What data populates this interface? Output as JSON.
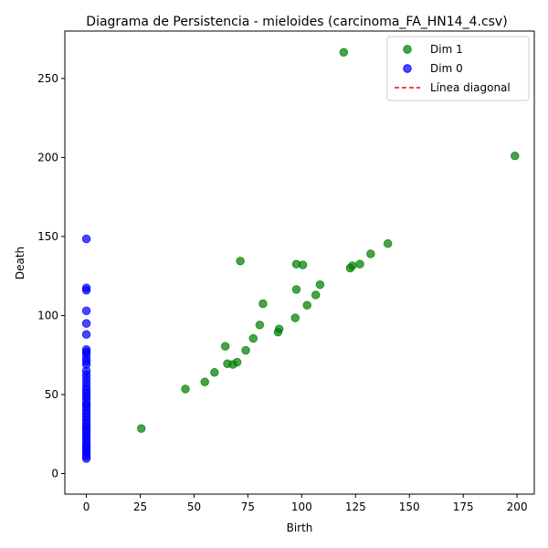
{
  "chart_data": {
    "type": "scatter",
    "title": "Diagrama de Persistencia - mieloides (carcinoma_FA_HN14_4.csv)",
    "xlabel": "Birth",
    "ylabel": "Death",
    "xlim": [
      -10,
      208
    ],
    "ylim": [
      -13,
      280
    ],
    "xticks": [
      0,
      25,
      50,
      75,
      100,
      125,
      150,
      175,
      200
    ],
    "yticks": [
      0,
      50,
      100,
      150,
      200,
      250
    ],
    "grid": false,
    "legend_position": "top-right",
    "series": [
      {
        "name": "Dim 1",
        "color": "#008000",
        "points": [
          [
            25.5,
            28.5
          ],
          [
            46,
            53.5
          ],
          [
            55,
            58
          ],
          [
            59.5,
            64
          ],
          [
            64.5,
            80.5
          ],
          [
            65.5,
            69.5
          ],
          [
            68,
            69
          ],
          [
            70,
            70.5
          ],
          [
            74,
            78
          ],
          [
            77.5,
            85.5
          ],
          [
            80.5,
            94
          ],
          [
            82,
            107.5
          ],
          [
            71.5,
            134.5
          ],
          [
            89,
            89.5
          ],
          [
            89.5,
            91.5
          ],
          [
            97,
            98.5
          ],
          [
            97.5,
            116.5
          ],
          [
            97.5,
            132.5
          ],
          [
            100.5,
            132
          ],
          [
            102.5,
            106.5
          ],
          [
            106.5,
            113
          ],
          [
            108.5,
            119.5
          ],
          [
            122.5,
            130
          ],
          [
            123.5,
            131.5
          ],
          [
            127,
            132.5
          ],
          [
            132,
            139
          ],
          [
            140,
            145.5
          ],
          [
            119.5,
            266.5
          ],
          [
            199,
            201
          ]
        ]
      },
      {
        "name": "Dim 0",
        "color": "#0000ff",
        "points": [
          [
            0,
            148.5
          ],
          [
            0,
            117.5
          ],
          [
            0,
            116
          ],
          [
            0,
            103
          ],
          [
            0,
            95
          ],
          [
            0,
            88
          ],
          [
            0,
            78.5
          ],
          [
            0,
            77
          ],
          [
            0,
            75.5
          ],
          [
            0,
            73
          ],
          [
            0,
            71
          ],
          [
            0,
            69
          ],
          [
            0,
            65
          ],
          [
            0,
            62.5
          ],
          [
            0,
            60
          ],
          [
            0,
            57.5
          ],
          [
            0,
            55
          ],
          [
            0,
            53
          ],
          [
            0,
            51
          ],
          [
            0,
            49
          ],
          [
            0,
            47.5
          ],
          [
            0,
            45
          ],
          [
            0,
            43.5
          ],
          [
            0,
            42
          ],
          [
            0,
            40
          ],
          [
            0,
            38
          ],
          [
            0,
            36
          ],
          [
            0,
            34
          ],
          [
            0,
            32
          ],
          [
            0,
            30
          ],
          [
            0,
            28.5
          ],
          [
            0,
            27
          ],
          [
            0,
            25
          ],
          [
            0,
            23.5
          ],
          [
            0,
            22
          ],
          [
            0,
            20
          ],
          [
            0,
            18.5
          ],
          [
            0,
            17
          ],
          [
            0,
            15.5
          ],
          [
            0,
            14
          ],
          [
            0,
            12.5
          ],
          [
            0,
            11
          ],
          [
            0,
            9.5
          ]
        ]
      }
    ],
    "legend_entries": [
      {
        "label": "Dim 1",
        "color": "#008000",
        "marker": "circle"
      },
      {
        "label": "Dim 0",
        "color": "#0000ff",
        "marker": "circle"
      },
      {
        "label": "Línea diagonal",
        "color": "#ff0000",
        "marker": "dashed-line"
      }
    ]
  }
}
